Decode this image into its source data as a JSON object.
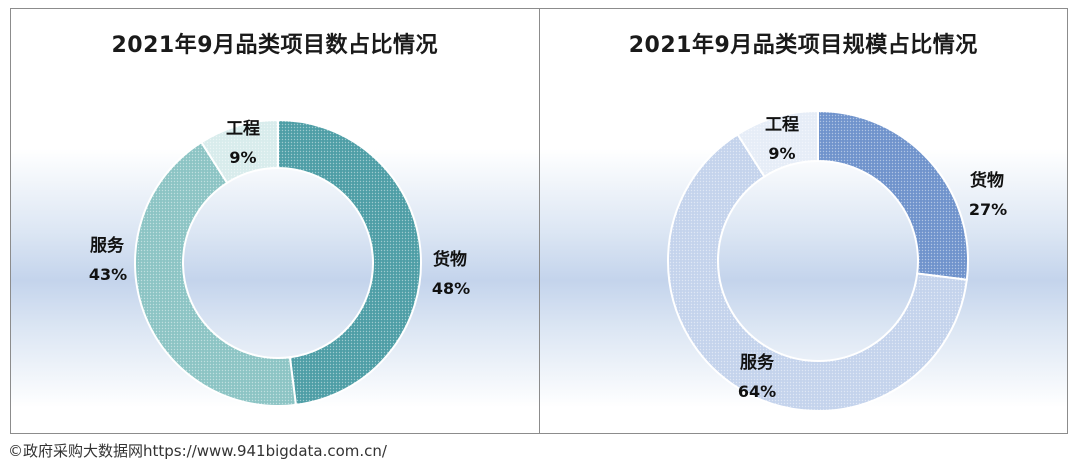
{
  "chart_data": [
    {
      "type": "pie",
      "style": "donut",
      "title": "2021年9月品类项目数占比情况",
      "categories": [
        "货物",
        "服务",
        "工程"
      ],
      "values": [
        48,
        43,
        9
      ],
      "value_labels": [
        "48%",
        "43%",
        "9%"
      ],
      "colors": [
        "#4e9ea6",
        "#8cc4c4",
        "#d8ecec"
      ]
    },
    {
      "type": "pie",
      "style": "donut",
      "title": "2021年9月品类项目规模占比情况",
      "categories": [
        "货物",
        "服务",
        "工程"
      ],
      "values": [
        27,
        64,
        9
      ],
      "value_labels": [
        "27%",
        "64%",
        "9%"
      ],
      "colors": [
        "#6f93cc",
        "#c4d3ec",
        "#e6edf7"
      ]
    }
  ],
  "footer": {
    "text": "©政府采购大数据网https://www.941bigdata.com.cn/"
  }
}
